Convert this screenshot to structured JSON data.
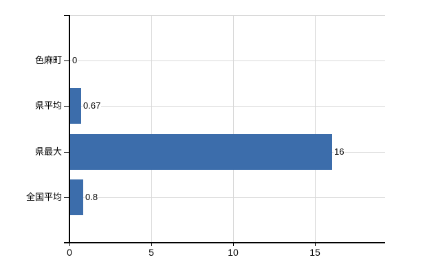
{
  "chart_data": {
    "type": "bar",
    "orientation": "horizontal",
    "title": "",
    "xlabel": "",
    "ylabel": "",
    "categories": [
      "色麻町",
      "県平均",
      "県最大",
      "全国平均"
    ],
    "values": [
      0,
      0.67,
      16,
      0.8
    ],
    "value_labels": [
      "0",
      "0.67",
      "16",
      "0.8"
    ],
    "xlim": [
      0,
      19.3
    ],
    "x_ticks": [
      0,
      5,
      10,
      15
    ],
    "x_tick_labels": [
      "0",
      "5",
      "10",
      "15"
    ],
    "grid": true,
    "legend": false,
    "colors": {
      "bar": "#3c6dab",
      "gridline": "#d8d8d8",
      "axis": "#000000",
      "text": "#000000",
      "background": "#ffffff"
    }
  }
}
